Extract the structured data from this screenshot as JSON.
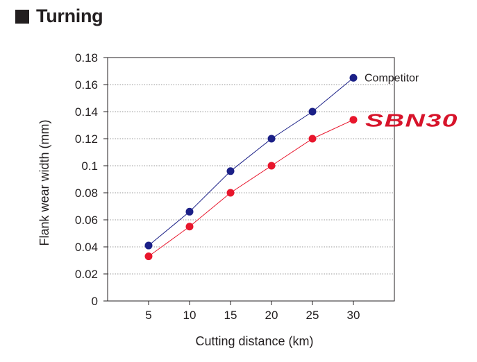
{
  "header": {
    "title": "Turning"
  },
  "chart_data": {
    "type": "line",
    "title": "",
    "xlabel": "Cutting distance (km)",
    "ylabel": "Flank wear width (mm)",
    "x": [
      5,
      10,
      15,
      20,
      25,
      30
    ],
    "xlim": [
      0,
      35
    ],
    "ylim": [
      0,
      0.18
    ],
    "x_ticks": [
      "5",
      "10",
      "15",
      "20",
      "25",
      "30"
    ],
    "y_ticks": [
      "0",
      "0.02",
      "0.04",
      "0.06",
      "0.08",
      "0.1",
      "0.12",
      "0.14",
      "0.16",
      "0.18"
    ],
    "grid": "horizontal dotted",
    "legend": "end-of-line labels",
    "series": [
      {
        "name": "Competitor",
        "color": "#1b2087",
        "values": [
          0.041,
          0.066,
          0.096,
          0.12,
          0.14,
          0.165
        ]
      },
      {
        "name": "SBN30",
        "color": "#e8162c",
        "values": [
          0.033,
          0.055,
          0.08,
          0.1,
          0.12,
          0.134
        ]
      }
    ]
  }
}
